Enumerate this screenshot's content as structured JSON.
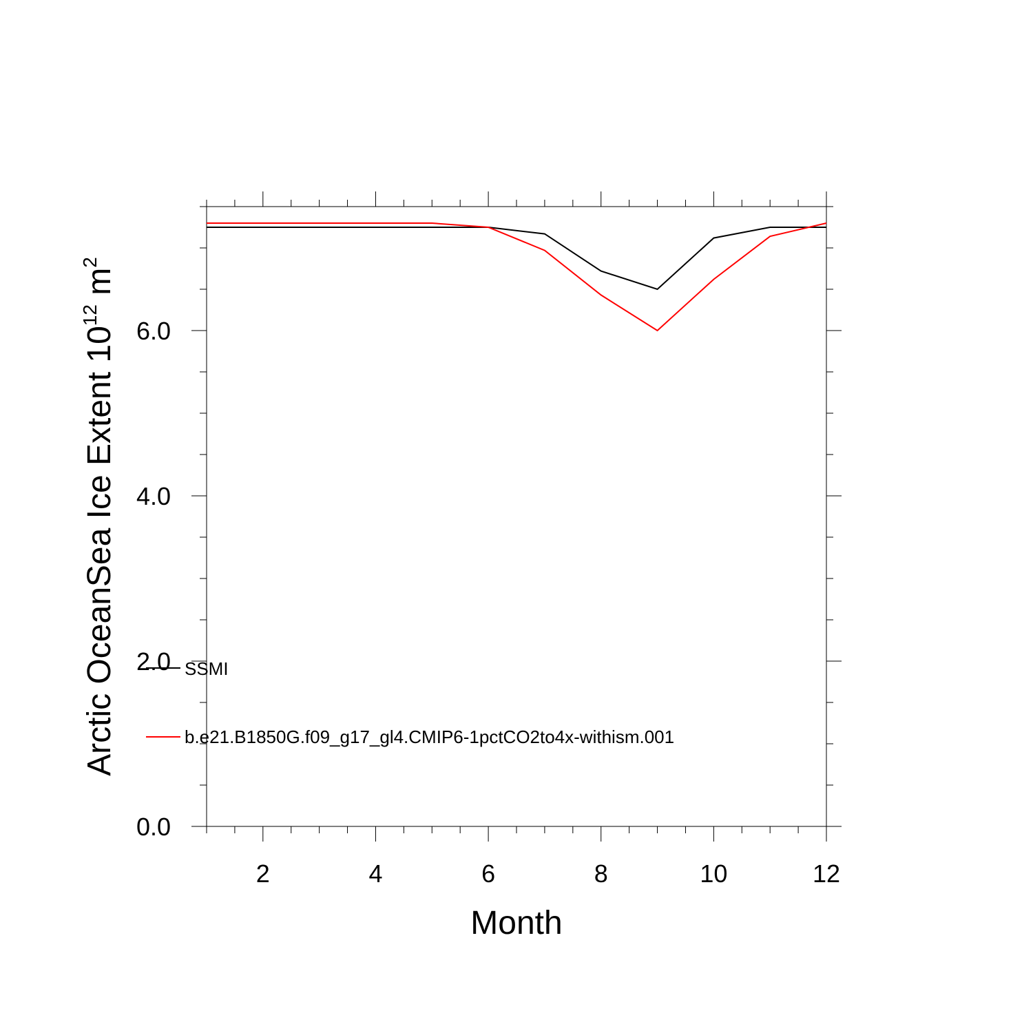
{
  "chart_data": {
    "type": "line",
    "xlabel": "Month",
    "ylabel_main": "Arctic OceanSea Ice Extent 10",
    "ylabel_sup": "12",
    "ylabel_unit": " m",
    "ylabel_unit_sup": "2",
    "xlim": [
      1,
      12
    ],
    "ylim": [
      0,
      7.5
    ],
    "x_major_ticks": [
      2,
      4,
      6,
      8,
      10,
      12
    ],
    "x_tick_labels": [
      "2",
      "4",
      "6",
      "8",
      "10",
      "12"
    ],
    "y_major_ticks": [
      0,
      2,
      4,
      6
    ],
    "y_tick_labels": [
      "0.0",
      "2.0",
      "4.0",
      "6.0"
    ],
    "grid": false,
    "x": [
      1,
      2,
      3,
      4,
      5,
      6,
      7,
      8,
      9,
      10,
      11,
      12
    ],
    "series": [
      {
        "name": "SSMI",
        "color": "#000000",
        "values": [
          7.25,
          7.25,
          7.25,
          7.25,
          7.25,
          7.25,
          7.17,
          6.72,
          6.5,
          7.12,
          7.25,
          7.25
        ]
      },
      {
        "name": "b.e21.B1850G.f09_g17_gl4.CMIP6-1pctCO2to4x-withism.001",
        "color": "#ff0000",
        "values": [
          7.3,
          7.3,
          7.3,
          7.3,
          7.3,
          7.25,
          6.97,
          6.43,
          6.0,
          6.62,
          7.14,
          7.3
        ]
      }
    ],
    "legend_position": "lower-left, inside plot"
  }
}
